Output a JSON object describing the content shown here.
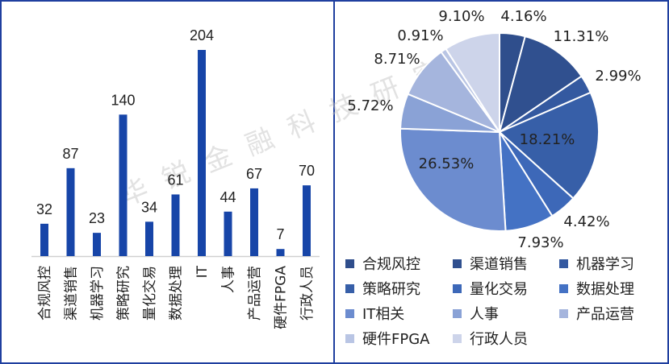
{
  "watermark": "华锐金融科技研究所",
  "chart_data": [
    {
      "type": "bar",
      "categories": [
        "合规风控",
        "渠道销售",
        "机器学习",
        "策略研究",
        "量化交易",
        "数据处理",
        "IT",
        "人事",
        "产品运营",
        "硬件FPGA",
        "行政人员"
      ],
      "values": [
        32,
        87,
        23,
        140,
        34,
        61,
        204,
        44,
        67,
        7,
        70
      ],
      "data_labels": [
        "32",
        "87",
        "23",
        "140",
        "34",
        "61",
        "204",
        "44",
        "67",
        "7",
        "70"
      ],
      "bar_color": "#1745a8",
      "grid": false,
      "title": "",
      "xlabel": "",
      "ylabel": ""
    },
    {
      "type": "pie",
      "categories": [
        "合规风控",
        "渠道销售",
        "机器学习",
        "策略研究",
        "量化交易",
        "数据处理",
        "IT相关",
        "人事",
        "产品运营",
        "硬件FPGA",
        "行政人员"
      ],
      "values": [
        4.16,
        11.31,
        2.99,
        18.21,
        4.42,
        7.93,
        26.53,
        5.72,
        8.71,
        0.91,
        9.1
      ],
      "data_labels": [
        "4.16%",
        "11.31%",
        "2.99%",
        "18.21%",
        "4.42%",
        "7.93%",
        "26.53%",
        "5.72%",
        "8.71%",
        "0.91%",
        "9.10%"
      ],
      "colors": [
        "#2f4e8c",
        "#30508f",
        "#3459a0",
        "#375fa8",
        "#3d68b8",
        "#4472c4",
        "#6c8ccf",
        "#8aa2d6",
        "#a5b5dd",
        "#b9c5e4",
        "#cdd4ea"
      ],
      "start": "12 o'clock, clockwise",
      "legend": "bottom"
    }
  ]
}
